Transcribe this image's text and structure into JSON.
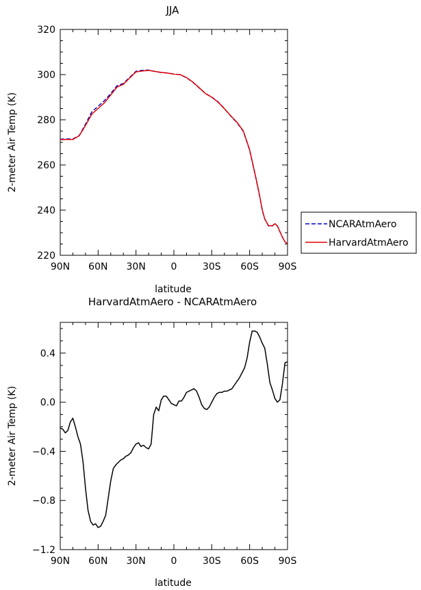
{
  "chart_data": [
    {
      "type": "line",
      "title": "JJA",
      "xlabel": "latitude",
      "ylabel": "2-meter Air Temp (K)",
      "x_ticks": [
        {
          "value": -90,
          "label": "90N"
        },
        {
          "value": -60,
          "label": "60N"
        },
        {
          "value": -30,
          "label": "30N"
        },
        {
          "value": 0,
          "label": "0"
        },
        {
          "value": 30,
          "label": "30S"
        },
        {
          "value": 60,
          "label": "60S"
        },
        {
          "value": 90,
          "label": "90S"
        }
      ],
      "y_ticks": [
        220,
        240,
        260,
        280,
        300,
        320
      ],
      "xlim": [
        -90,
        90
      ],
      "ylim": [
        220,
        320
      ],
      "legend_position": "right",
      "x": [
        -90,
        -85,
        -80,
        -75,
        -70,
        -65,
        -60,
        -55,
        -50,
        -45,
        -40,
        -35,
        -30,
        -25,
        -20,
        -15,
        -10,
        -5,
        0,
        5,
        10,
        15,
        20,
        25,
        30,
        35,
        40,
        45,
        50,
        55,
        60,
        62,
        65,
        68,
        70,
        72,
        75,
        78,
        80,
        82,
        84,
        86,
        88,
        90
      ],
      "series": [
        {
          "name": "NCARAtmAero",
          "color": "#0000cc",
          "dash": "dashed",
          "values": [
            271.4,
            271.5,
            271.5,
            273.0,
            278.0,
            283.5,
            286.0,
            288.5,
            291.6,
            295.1,
            296.1,
            298.8,
            301.5,
            301.9,
            302.0,
            301.4,
            300.9,
            300.7,
            300.2,
            300.0,
            298.6,
            296.6,
            294.1,
            291.6,
            290.1,
            287.9,
            284.9,
            281.7,
            278.7,
            274.9,
            266.5,
            261.5,
            254.0,
            246.0,
            240.0,
            236.0,
            233.0,
            233.0,
            234.0,
            233.0,
            230.5,
            228.0,
            226.0,
            225.0
          ]
        },
        {
          "name": "HarvardAtmAero",
          "color": "#e00000",
          "dash": "solid",
          "values": [
            271.2,
            271.3,
            271.3,
            272.9,
            277.5,
            282.5,
            285.0,
            287.5,
            291.0,
            294.5,
            295.7,
            298.5,
            301.2,
            301.6,
            301.9,
            301.4,
            301.0,
            300.7,
            300.2,
            300.0,
            298.7,
            296.7,
            294.2,
            291.6,
            290.0,
            287.8,
            284.9,
            281.8,
            278.9,
            275.1,
            266.7,
            261.7,
            254.2,
            246.2,
            240.1,
            236.1,
            233.1,
            233.1,
            234.0,
            233.0,
            230.5,
            228.0,
            226.0,
            225.0
          ]
        }
      ]
    },
    {
      "type": "line",
      "title": "HarvardAtmAero - NCARAtmAero",
      "xlabel": "latitude",
      "ylabel": "2-meter Air Temp (K)",
      "x_ticks": [
        {
          "value": -90,
          "label": "90N"
        },
        {
          "value": -60,
          "label": "60N"
        },
        {
          "value": -30,
          "label": "30N"
        },
        {
          "value": 0,
          "label": "0"
        },
        {
          "value": 30,
          "label": "30S"
        },
        {
          "value": 60,
          "label": "60S"
        },
        {
          "value": 90,
          "label": "90S"
        }
      ],
      "y_ticks": [
        {
          "value": -1.2,
          "label": "−1.2"
        },
        {
          "value": -0.8,
          "label": "−0.8"
        },
        {
          "value": -0.4,
          "label": "−0.4"
        },
        {
          "value": 0.0,
          "label": "0.0"
        },
        {
          "value": 0.4,
          "label": "0.4"
        }
      ],
      "xlim": [
        -90,
        90
      ],
      "ylim": [
        -1.2,
        0.65
      ],
      "series": [
        {
          "color": "#000000",
          "x": [
            -90,
            -88,
            -86,
            -84,
            -82,
            -80,
            -78,
            -76,
            -74,
            -72,
            -70,
            -68,
            -66,
            -64,
            -62,
            -60,
            -58,
            -56,
            -54,
            -52,
            -50,
            -48,
            -46,
            -44,
            -42,
            -40,
            -38,
            -36,
            -34,
            -32,
            -30,
            -28,
            -26,
            -24,
            -22,
            -20,
            -18,
            -16,
            -14,
            -12,
            -10,
            -8,
            -6,
            -4,
            -2,
            0,
            2,
            4,
            6,
            8,
            10,
            12,
            14,
            16,
            18,
            20,
            22,
            24,
            26,
            28,
            30,
            32,
            34,
            36,
            38,
            40,
            42,
            44,
            46,
            48,
            50,
            52,
            54,
            56,
            58,
            60,
            62,
            64,
            66,
            68,
            70,
            72,
            74,
            76,
            78,
            80,
            82,
            84,
            86,
            88,
            90
          ],
          "values": [
            -0.21,
            -0.22,
            -0.25,
            -0.23,
            -0.16,
            -0.13,
            -0.2,
            -0.28,
            -0.34,
            -0.48,
            -0.7,
            -0.88,
            -0.97,
            -1.0,
            -0.99,
            -1.02,
            -1.01,
            -0.97,
            -0.92,
            -0.78,
            -0.64,
            -0.54,
            -0.51,
            -0.49,
            -0.47,
            -0.46,
            -0.44,
            -0.43,
            -0.41,
            -0.37,
            -0.34,
            -0.33,
            -0.36,
            -0.35,
            -0.37,
            -0.38,
            -0.34,
            -0.1,
            -0.04,
            -0.07,
            0.02,
            0.05,
            0.05,
            0.02,
            -0.01,
            -0.02,
            -0.03,
            0.01,
            0.01,
            0.04,
            0.08,
            0.09,
            0.1,
            0.11,
            0.09,
            0.04,
            -0.02,
            -0.05,
            -0.06,
            -0.04,
            0.0,
            0.04,
            0.07,
            0.08,
            0.08,
            0.09,
            0.09,
            0.1,
            0.11,
            0.14,
            0.17,
            0.2,
            0.24,
            0.28,
            0.36,
            0.49,
            0.58,
            0.58,
            0.57,
            0.53,
            0.48,
            0.44,
            0.31,
            0.16,
            0.1,
            0.03,
            0.0,
            0.02,
            0.15,
            0.32,
            0.33
          ]
        }
      ]
    }
  ]
}
